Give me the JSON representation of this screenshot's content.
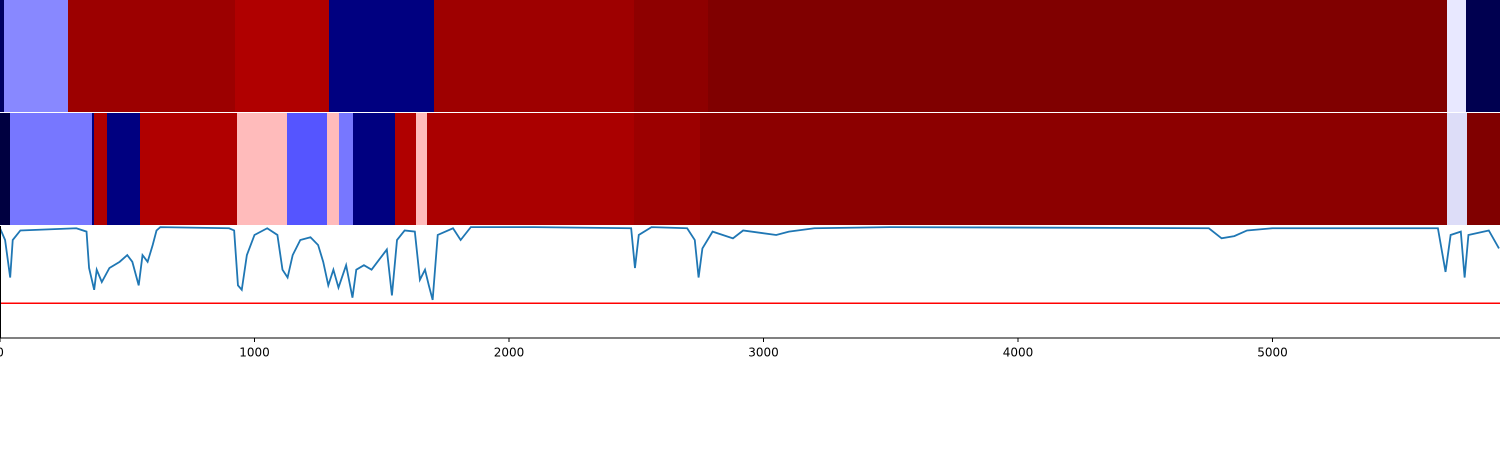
{
  "chart_data": [
    {
      "type": "strip",
      "edges": [
        0,
        16,
        267,
        923,
        1293,
        1705,
        2491,
        2782,
        5686,
        5760,
        5894
      ],
      "colors": [
        "#000060",
        "#8888ff",
        "#9c0000",
        "#b00000",
        "#000080",
        "#9e0000",
        "#8e0000",
        "#800000",
        "#e8e8ff",
        "#000050"
      ],
      "xlim": [
        0,
        5894
      ]
    },
    {
      "type": "strip",
      "edges": [
        0,
        39,
        361,
        369,
        420,
        550,
        931,
        1128,
        1285,
        1332,
        1387,
        1552,
        1635,
        1678,
        2491,
        2750,
        5686,
        5764,
        5894
      ],
      "colors": [
        "#000040",
        "#7777ff",
        "#000080",
        "#b00000",
        "#000080",
        "#b00000",
        "#ffbbbb",
        "#5555ff",
        "#ffbbbb",
        "#7777ff",
        "#000080",
        "#b00000",
        "#ffbbbb",
        "#aa0000",
        "#9c0000",
        "#8c0000",
        "#ddddf8",
        "#800000"
      ],
      "xlim": [
        0,
        5894
      ]
    },
    {
      "type": "line",
      "x": [
        0,
        20,
        40,
        50,
        80,
        300,
        340,
        350,
        370,
        380,
        400,
        430,
        470,
        500,
        520,
        545,
        560,
        580,
        600,
        615,
        630,
        900,
        920,
        935,
        950,
        970,
        1000,
        1050,
        1090,
        1110,
        1130,
        1150,
        1180,
        1220,
        1250,
        1270,
        1290,
        1310,
        1330,
        1360,
        1385,
        1400,
        1430,
        1460,
        1490,
        1520,
        1540,
        1560,
        1590,
        1630,
        1650,
        1670,
        1685,
        1700,
        1720,
        1780,
        1810,
        1850,
        2100,
        2480,
        2495,
        2510,
        2560,
        2700,
        2730,
        2745,
        2760,
        2800,
        2880,
        2920,
        3050,
        3100,
        3200,
        3500,
        4750,
        4800,
        4850,
        4900,
        5000,
        5650,
        5680,
        5700,
        5740,
        5755,
        5770,
        5850,
        5890
      ],
      "series": [
        {
          "color": "#1f77b4",
          "values": [
            0.98,
            0.875,
            0.54,
            0.875,
            0.96,
            0.98,
            0.95,
            0.625,
            0.43,
            0.61,
            0.5,
            0.625,
            0.68,
            0.74,
            0.68,
            0.47,
            0.74,
            0.68,
            0.83,
            0.96,
            0.99,
            0.98,
            0.96,
            0.47,
            0.43,
            0.74,
            0.92,
            0.98,
            0.92,
            0.61,
            0.54,
            0.74,
            0.875,
            0.9,
            0.83,
            0.68,
            0.47,
            0.61,
            0.45,
            0.65,
            0.36,
            0.61,
            0.65,
            0.61,
            0.7,
            0.79,
            0.38,
            0.875,
            0.96,
            0.95,
            0.52,
            0.61,
            0.47,
            0.34,
            0.92,
            0.98,
            0.875,
            0.99,
            0.99,
            0.98,
            0.625,
            0.92,
            0.99,
            0.98,
            0.875,
            0.54,
            0.8,
            0.95,
            0.89,
            0.96,
            0.92,
            0.95,
            0.98,
            0.99,
            0.98,
            0.89,
            0.91,
            0.96,
            0.98,
            0.98,
            0.59,
            0.92,
            0.95,
            0.54,
            0.92,
            0.96,
            0.8
          ]
        }
      ],
      "hline": {
        "value": 0.31,
        "color": "#ff0000"
      },
      "xlim": [
        0,
        5894
      ],
      "ylim": [
        0,
        1
      ],
      "xticks": [
        0,
        1000,
        2000,
        3000,
        4000,
        5000
      ]
    }
  ]
}
